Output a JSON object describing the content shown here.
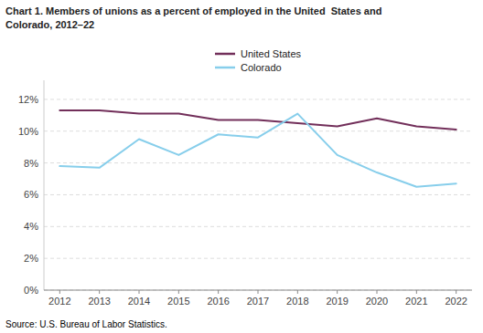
{
  "chart_data": {
    "type": "line",
    "title": "Chart 1. Members of unions as a percent of employed in the United  States and\nColorado, 2012–22",
    "annotations": [
      "Source: U.S. Bureau of Labor Statistics."
    ],
    "x": [
      2012,
      2013,
      2014,
      2015,
      2016,
      2017,
      2018,
      2019,
      2020,
      2021,
      2022
    ],
    "xlim": [
      2011.6,
      2022.4
    ],
    "xticks": [
      2012,
      2013,
      2014,
      2015,
      2016,
      2017,
      2018,
      2019,
      2020,
      2021,
      2022
    ],
    "ylim": [
      0,
      13.2
    ],
    "yticks": [
      {
        "value": 0,
        "label": "0%"
      },
      {
        "value": 2,
        "label": "2%"
      },
      {
        "value": 4,
        "label": "4%"
      },
      {
        "value": 6,
        "label": "6%"
      },
      {
        "value": 8,
        "label": "8%"
      },
      {
        "value": 10,
        "label": "10%"
      },
      {
        "value": 12,
        "label": "12%"
      }
    ],
    "grid": true,
    "legend": "top",
    "series": [
      {
        "name": "United States",
        "color": "#722F5A",
        "values": [
          11.3,
          11.3,
          11.1,
          11.1,
          10.7,
          10.7,
          10.5,
          10.3,
          10.8,
          10.3,
          10.1
        ]
      },
      {
        "name": "Colorado",
        "color": "#87CEEB",
        "values": [
          7.8,
          7.7,
          9.5,
          8.5,
          9.8,
          9.6,
          11.1,
          8.5,
          7.4,
          6.5,
          6.7
        ]
      }
    ]
  }
}
